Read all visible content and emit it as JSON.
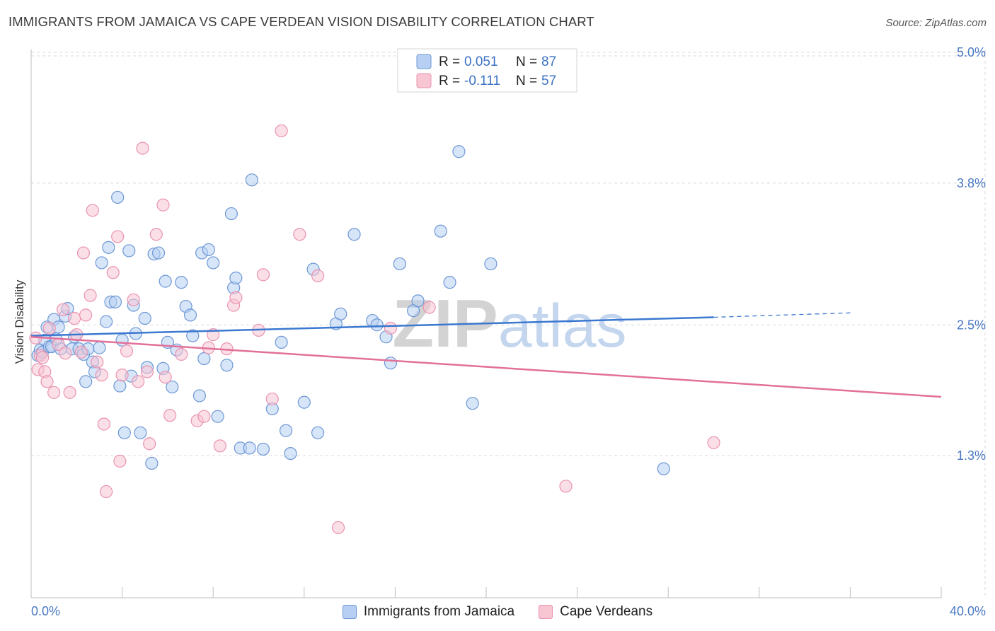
{
  "title": "IMMIGRANTS FROM JAMAICA VS CAPE VERDEAN VISION DISABILITY CORRELATION CHART",
  "source": "Source: ZipAtlas.com",
  "watermark": "ZIPatlas",
  "colors": {
    "blue_fill": "#b7cff2",
    "blue_stroke": "#6e98d6",
    "blue_line": "#3b78d0",
    "pink_fill": "#f8c5d3",
    "pink_stroke": "#e993b0",
    "pink_line": "#e2709a",
    "tick_text": "#4a78c2",
    "grid": "#d8d8d8"
  },
  "legend": {
    "r_label": "R =",
    "n_label": "N =",
    "rows": [
      {
        "r": "0.051",
        "n": "87"
      },
      {
        "r": "-0.111",
        "n": "57"
      }
    ]
  },
  "chart_data": {
    "type": "scatter",
    "xlabel": "",
    "ylabel": "Vision Disability",
    "xlim": [
      0,
      40
    ],
    "ylim": [
      0,
      5.2
    ],
    "x_tick_labels": {
      "left": "0.0%",
      "right": "40.0%"
    },
    "y_ticks": [
      {
        "value": 1.3,
        "label": "1.3%"
      },
      {
        "value": 2.5,
        "label": "2.5%"
      },
      {
        "value": 3.8,
        "label": "3.8%"
      },
      {
        "value": 5.0,
        "label": "5.0%"
      }
    ],
    "grid": true,
    "legend_position": "top-center",
    "series": [
      {
        "name": "Immigrants from Jamaica",
        "color": "blue",
        "trend": {
          "x": [
            0,
            30,
            36
          ],
          "y": [
            2.4,
            2.57,
            2.61
          ],
          "dashed_from_x": 30
        },
        "points": [
          [
            0.3,
            2.22
          ],
          [
            0.4,
            2.27
          ],
          [
            0.5,
            2.25
          ],
          [
            0.6,
            2.36
          ],
          [
            0.7,
            2.48
          ],
          [
            0.8,
            2.3
          ],
          [
            0.9,
            2.3
          ],
          [
            1.0,
            2.55
          ],
          [
            1.2,
            2.48
          ],
          [
            1.3,
            2.28
          ],
          [
            1.5,
            2.58
          ],
          [
            1.6,
            2.65
          ],
          [
            1.8,
            2.28
          ],
          [
            1.9,
            2.39
          ],
          [
            2.1,
            2.28
          ],
          [
            2.3,
            2.23
          ],
          [
            2.4,
            1.98
          ],
          [
            2.5,
            2.28
          ],
          [
            2.7,
            2.16
          ],
          [
            2.8,
            2.07
          ],
          [
            3.0,
            2.29
          ],
          [
            3.1,
            3.07
          ],
          [
            3.3,
            2.53
          ],
          [
            3.4,
            3.21
          ],
          [
            3.5,
            2.71
          ],
          [
            3.7,
            2.71
          ],
          [
            3.8,
            3.67
          ],
          [
            3.9,
            1.94
          ],
          [
            4.0,
            2.36
          ],
          [
            4.1,
            1.51
          ],
          [
            4.3,
            3.18
          ],
          [
            4.4,
            2.03
          ],
          [
            4.5,
            2.68
          ],
          [
            4.6,
            2.42
          ],
          [
            4.8,
            1.51
          ],
          [
            5.0,
            2.56
          ],
          [
            5.1,
            2.11
          ],
          [
            5.3,
            1.23
          ],
          [
            5.4,
            3.15
          ],
          [
            5.6,
            3.16
          ],
          [
            5.8,
            2.1
          ],
          [
            5.9,
            2.9
          ],
          [
            6.0,
            2.34
          ],
          [
            6.2,
            1.93
          ],
          [
            6.4,
            2.27
          ],
          [
            6.6,
            2.89
          ],
          [
            6.8,
            2.67
          ],
          [
            7.0,
            2.59
          ],
          [
            7.1,
            2.4
          ],
          [
            7.4,
            1.85
          ],
          [
            7.5,
            3.16
          ],
          [
            7.6,
            2.19
          ],
          [
            7.8,
            3.19
          ],
          [
            8.0,
            3.07
          ],
          [
            8.2,
            1.66
          ],
          [
            8.6,
            2.13
          ],
          [
            8.8,
            3.52
          ],
          [
            8.9,
            2.84
          ],
          [
            9.0,
            2.93
          ],
          [
            9.2,
            1.37
          ],
          [
            9.6,
            1.37
          ],
          [
            9.7,
            3.83
          ],
          [
            10.2,
            1.36
          ],
          [
            10.6,
            1.73
          ],
          [
            11.0,
            2.34
          ],
          [
            11.2,
            1.53
          ],
          [
            11.4,
            1.32
          ],
          [
            12.0,
            1.79
          ],
          [
            12.4,
            3.01
          ],
          [
            12.6,
            1.51
          ],
          [
            13.4,
            2.51
          ],
          [
            13.6,
            2.6
          ],
          [
            14.2,
            3.33
          ],
          [
            15.0,
            2.54
          ],
          [
            15.2,
            2.5
          ],
          [
            15.6,
            2.39
          ],
          [
            15.8,
            2.15
          ],
          [
            16.2,
            3.06
          ],
          [
            16.8,
            2.63
          ],
          [
            17.0,
            2.72
          ],
          [
            18.0,
            3.36
          ],
          [
            18.4,
            2.89
          ],
          [
            18.8,
            4.09
          ],
          [
            19.4,
            1.78
          ],
          [
            20.2,
            3.06
          ],
          [
            27.8,
            1.18
          ],
          [
            1.1,
            2.37
          ]
        ]
      },
      {
        "name": "Cape Verdeans",
        "color": "pink",
        "trend": {
          "x": [
            0,
            40
          ],
          "y": [
            2.39,
            1.84
          ]
        },
        "points": [
          [
            0.2,
            2.38
          ],
          [
            0.3,
            2.09
          ],
          [
            0.4,
            2.22
          ],
          [
            0.5,
            2.2
          ],
          [
            0.6,
            2.07
          ],
          [
            0.7,
            1.98
          ],
          [
            0.8,
            2.47
          ],
          [
            1.0,
            1.88
          ],
          [
            1.2,
            2.32
          ],
          [
            1.4,
            2.64
          ],
          [
            1.5,
            2.24
          ],
          [
            1.7,
            1.88
          ],
          [
            1.9,
            2.56
          ],
          [
            2.0,
            2.41
          ],
          [
            2.2,
            2.25
          ],
          [
            2.3,
            3.16
          ],
          [
            2.4,
            2.59
          ],
          [
            2.6,
            2.77
          ],
          [
            2.7,
            3.55
          ],
          [
            2.9,
            2.16
          ],
          [
            3.1,
            2.04
          ],
          [
            3.2,
            1.59
          ],
          [
            3.3,
            0.97
          ],
          [
            3.6,
            2.98
          ],
          [
            3.8,
            3.31
          ],
          [
            3.9,
            1.25
          ],
          [
            4.0,
            2.04
          ],
          [
            4.2,
            2.26
          ],
          [
            4.5,
            2.73
          ],
          [
            4.7,
            1.98
          ],
          [
            4.9,
            4.12
          ],
          [
            5.1,
            2.07
          ],
          [
            5.2,
            1.41
          ],
          [
            5.5,
            3.33
          ],
          [
            5.8,
            3.6
          ],
          [
            5.9,
            2.02
          ],
          [
            6.1,
            1.67
          ],
          [
            6.6,
            2.23
          ],
          [
            7.3,
            1.62
          ],
          [
            7.6,
            1.66
          ],
          [
            7.8,
            2.29
          ],
          [
            8.0,
            2.41
          ],
          [
            8.3,
            1.39
          ],
          [
            8.6,
            2.28
          ],
          [
            8.9,
            2.68
          ],
          [
            9.0,
            2.75
          ],
          [
            10.0,
            2.45
          ],
          [
            10.2,
            2.96
          ],
          [
            10.6,
            1.82
          ],
          [
            11.0,
            4.28
          ],
          [
            11.8,
            3.33
          ],
          [
            12.6,
            2.95
          ],
          [
            13.5,
            0.64
          ],
          [
            15.8,
            2.47
          ],
          [
            17.5,
            2.66
          ],
          [
            23.5,
            1.02
          ],
          [
            30.0,
            1.42
          ]
        ]
      }
    ]
  }
}
